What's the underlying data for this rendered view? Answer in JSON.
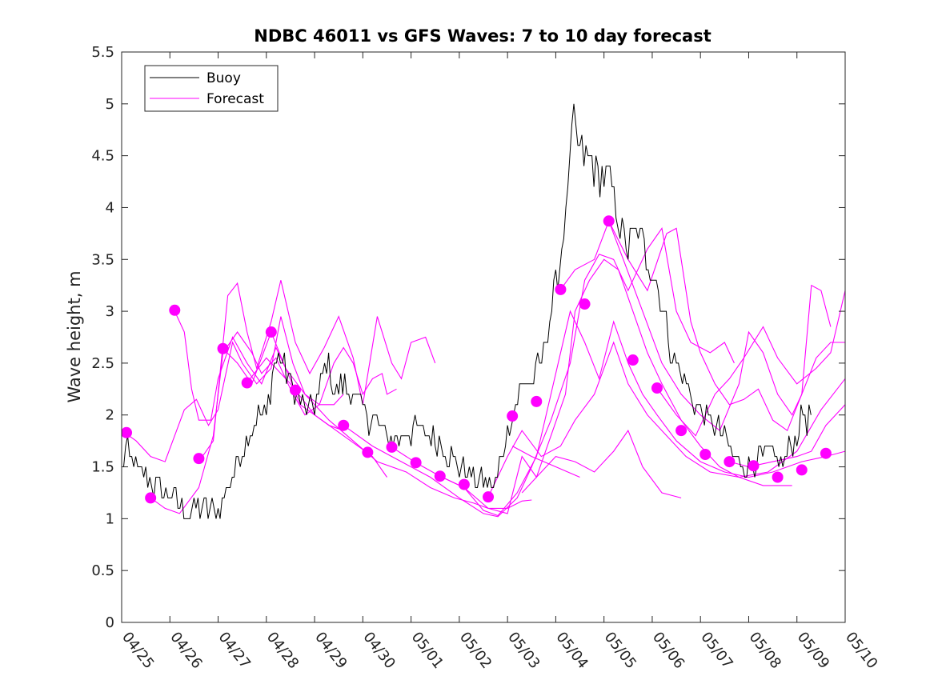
{
  "chart_data": {
    "type": "line",
    "title": "NDBC 46011 vs GFS Waves: 7 to 10 day forecast",
    "xlabel": "",
    "ylabel": "Wave height, m",
    "xlim": [
      "04/25",
      "05/10"
    ],
    "ylim": [
      0,
      5.5
    ],
    "x_ticks": [
      "04/25",
      "04/26",
      "04/27",
      "04/28",
      "04/29",
      "04/30",
      "05/01",
      "05/02",
      "05/03",
      "05/04",
      "05/05",
      "05/06",
      "05/07",
      "05/08",
      "05/09",
      "05/10"
    ],
    "y_ticks": [
      "0",
      "0.5",
      "1",
      "1.5",
      "2",
      "2.5",
      "3",
      "3.5",
      "4",
      "4.5",
      "5",
      "5.5"
    ],
    "grid": false,
    "legend": {
      "position": "top-left",
      "entries": [
        "Buoy",
        "Forecast"
      ]
    },
    "colors": {
      "buoy": "#000000",
      "forecast": "#ff00ff"
    },
    "buoy_anchors": [
      [
        0.0,
        1.5
      ],
      [
        0.1,
        1.65
      ],
      [
        0.3,
        1.5
      ],
      [
        0.5,
        1.4
      ],
      [
        0.7,
        1.3
      ],
      [
        0.9,
        1.25
      ],
      [
        1.1,
        1.2
      ],
      [
        1.2,
        1.1
      ],
      [
        1.4,
        1.05
      ],
      [
        1.6,
        1.1
      ],
      [
        1.8,
        1.08
      ],
      [
        2.0,
        1.1
      ],
      [
        2.1,
        1.15
      ],
      [
        2.2,
        1.3
      ],
      [
        2.4,
        1.55
      ],
      [
        2.6,
        1.8
      ],
      [
        2.8,
        2.0
      ],
      [
        3.0,
        2.0
      ],
      [
        3.15,
        2.5
      ],
      [
        3.3,
        2.6
      ],
      [
        3.5,
        2.3
      ],
      [
        3.7,
        2.1
      ],
      [
        3.9,
        2.05
      ],
      [
        4.1,
        2.2
      ],
      [
        4.25,
        2.55
      ],
      [
        4.4,
        2.2
      ],
      [
        4.6,
        2.3
      ],
      [
        4.8,
        2.2
      ],
      [
        5.0,
        2.05
      ],
      [
        5.2,
        1.95
      ],
      [
        5.4,
        1.85
      ],
      [
        5.6,
        1.75
      ],
      [
        5.8,
        1.8
      ],
      [
        6.0,
        1.85
      ],
      [
        6.2,
        1.85
      ],
      [
        6.4,
        1.8
      ],
      [
        6.6,
        1.75
      ],
      [
        6.8,
        1.6
      ],
      [
        7.0,
        1.5
      ],
      [
        7.2,
        1.45
      ],
      [
        7.4,
        1.35
      ],
      [
        7.6,
        1.3
      ],
      [
        7.75,
        1.35
      ],
      [
        7.9,
        1.65
      ],
      [
        8.1,
        2.0
      ],
      [
        8.3,
        2.3
      ],
      [
        8.5,
        2.3
      ],
      [
        8.7,
        2.5
      ],
      [
        8.9,
        3.0
      ],
      [
        9.1,
        3.5
      ],
      [
        9.2,
        4.0
      ],
      [
        9.35,
        4.8
      ],
      [
        9.5,
        4.5
      ],
      [
        9.7,
        4.5
      ],
      [
        9.9,
        4.3
      ],
      [
        10.1,
        4.3
      ],
      [
        10.3,
        3.9
      ],
      [
        10.5,
        3.6
      ],
      [
        10.7,
        3.8
      ],
      [
        10.9,
        3.5
      ],
      [
        11.1,
        3.3
      ],
      [
        11.3,
        2.8
      ],
      [
        11.5,
        2.5
      ],
      [
        11.7,
        2.3
      ],
      [
        11.9,
        2.1
      ],
      [
        12.1,
        2.0
      ],
      [
        12.3,
        1.9
      ],
      [
        12.5,
        1.75
      ],
      [
        12.7,
        1.6
      ],
      [
        12.9,
        1.5
      ],
      [
        13.1,
        1.55
      ],
      [
        13.3,
        1.6
      ],
      [
        13.5,
        1.6
      ],
      [
        13.7,
        1.55
      ],
      [
        13.9,
        1.7
      ],
      [
        14.0,
        1.8
      ],
      [
        14.1,
        2.0
      ],
      [
        14.2,
        1.95
      ],
      [
        14.3,
        2.0
      ]
    ],
    "forecast_dots": [
      [
        0.1,
        1.83
      ],
      [
        0.6,
        1.2
      ],
      [
        1.1,
        3.01
      ],
      [
        1.6,
        1.58
      ],
      [
        2.1,
        2.64
      ],
      [
        2.6,
        2.31
      ],
      [
        3.1,
        2.8
      ],
      [
        3.6,
        2.24
      ],
      [
        4.6,
        1.9
      ],
      [
        5.1,
        1.64
      ],
      [
        5.6,
        1.69
      ],
      [
        6.1,
        1.54
      ],
      [
        6.6,
        1.41
      ],
      [
        7.1,
        1.33
      ],
      [
        7.6,
        1.21
      ],
      [
        8.1,
        1.99
      ],
      [
        8.6,
        2.13
      ],
      [
        9.1,
        3.21
      ],
      [
        9.6,
        3.07
      ],
      [
        10.1,
        3.87
      ],
      [
        10.6,
        2.53
      ],
      [
        11.1,
        2.26
      ],
      [
        11.6,
        1.85
      ],
      [
        12.1,
        1.62
      ],
      [
        12.6,
        1.55
      ],
      [
        13.1,
        1.51
      ],
      [
        13.6,
        1.4
      ],
      [
        14.1,
        1.47
      ],
      [
        14.6,
        1.63
      ]
    ],
    "forecast_series": [
      [
        [
          0.0,
          1.85
        ],
        [
          0.3,
          1.75
        ],
        [
          0.6,
          1.6
        ],
        [
          0.9,
          1.55
        ],
        [
          1.3,
          2.05
        ],
        [
          1.55,
          2.15
        ],
        [
          1.8,
          1.9
        ],
        [
          2.0,
          2.05
        ],
        [
          2.3,
          2.7
        ],
        [
          2.5,
          2.5
        ],
        [
          2.8,
          2.3
        ],
        [
          3.1,
          2.45
        ],
        [
          3.3,
          2.95
        ],
        [
          3.55,
          2.5
        ],
        [
          3.8,
          2.2
        ],
        [
          4.1,
          2.1
        ],
        [
          4.4,
          2.1
        ],
        [
          4.6,
          2.2
        ]
      ],
      [
        [
          1.1,
          3.0
        ],
        [
          1.3,
          2.8
        ],
        [
          1.45,
          2.25
        ],
        [
          1.6,
          1.95
        ],
        [
          1.85,
          1.95
        ],
        [
          2.0,
          2.35
        ],
        [
          2.3,
          2.75
        ],
        [
          2.6,
          2.5
        ],
        [
          2.9,
          2.3
        ],
        [
          3.2,
          2.65
        ],
        [
          3.45,
          2.4
        ],
        [
          3.7,
          2.1
        ],
        [
          4.0,
          2.0
        ],
        [
          4.3,
          1.9
        ],
        [
          4.6,
          1.85
        ]
      ],
      [
        [
          0.6,
          1.2
        ],
        [
          0.9,
          1.1
        ],
        [
          1.2,
          1.05
        ],
        [
          1.6,
          1.3
        ],
        [
          1.9,
          1.8
        ],
        [
          2.1,
          2.6
        ],
        [
          2.4,
          2.8
        ],
        [
          2.7,
          2.6
        ],
        [
          2.9,
          2.4
        ],
        [
          3.2,
          2.55
        ],
        [
          3.5,
          2.25
        ],
        [
          3.8,
          2.0
        ],
        [
          4.1,
          2.1
        ],
        [
          4.4,
          2.5
        ],
        [
          4.6,
          2.65
        ],
        [
          4.8,
          2.5
        ],
        [
          5.0,
          2.2
        ],
        [
          5.2,
          2.35
        ],
        [
          5.4,
          2.4
        ],
        [
          5.5,
          2.2
        ],
        [
          5.7,
          2.25
        ]
      ],
      [
        [
          1.6,
          1.55
        ],
        [
          1.9,
          1.75
        ],
        [
          2.2,
          3.15
        ],
        [
          2.4,
          3.27
        ],
        [
          2.6,
          2.8
        ],
        [
          2.8,
          2.45
        ],
        [
          3.1,
          2.9
        ],
        [
          3.3,
          3.3
        ],
        [
          3.6,
          2.7
        ],
        [
          3.9,
          2.4
        ],
        [
          4.2,
          2.65
        ],
        [
          4.5,
          2.95
        ],
        [
          4.8,
          2.55
        ],
        [
          5.0,
          2.1
        ],
        [
          5.3,
          2.95
        ],
        [
          5.6,
          2.5
        ],
        [
          5.8,
          2.35
        ],
        [
          6.0,
          2.7
        ],
        [
          6.3,
          2.75
        ],
        [
          6.5,
          2.5
        ]
      ],
      [
        [
          2.1,
          2.64
        ],
        [
          2.4,
          2.5
        ],
        [
          2.7,
          2.3
        ],
        [
          3.1,
          2.8
        ],
        [
          3.4,
          2.45
        ],
        [
          3.8,
          2.2
        ],
        [
          4.3,
          1.95
        ],
        [
          4.8,
          1.75
        ],
        [
          5.3,
          1.55
        ],
        [
          5.9,
          1.45
        ],
        [
          6.4,
          1.3
        ],
        [
          6.9,
          1.2
        ],
        [
          7.3,
          1.15
        ],
        [
          7.6,
          1.1
        ],
        [
          8.0,
          1.1
        ],
        [
          8.3,
          1.17
        ],
        [
          8.5,
          1.18
        ]
      ],
      [
        [
          2.6,
          2.31
        ],
        [
          3.0,
          2.55
        ],
        [
          3.5,
          2.3
        ],
        [
          4.0,
          2.0
        ],
        [
          4.6,
          1.8
        ],
        [
          5.2,
          1.6
        ],
        [
          5.5,
          1.4
        ]
      ],
      [
        [
          4.6,
          1.9
        ],
        [
          5.2,
          1.7
        ],
        [
          5.8,
          1.55
        ],
        [
          6.4,
          1.4
        ],
        [
          7.0,
          1.2
        ],
        [
          7.5,
          1.05
        ],
        [
          7.8,
          1.02
        ],
        [
          8.2,
          1.2
        ],
        [
          8.5,
          1.5
        ],
        [
          8.9,
          1.95
        ],
        [
          9.3,
          2.5
        ],
        [
          9.6,
          3.3
        ],
        [
          9.9,
          3.55
        ],
        [
          10.2,
          3.5
        ],
        [
          10.5,
          3.2
        ],
        [
          10.9,
          3.6
        ],
        [
          11.2,
          3.8
        ],
        [
          11.5,
          3.0
        ],
        [
          11.8,
          2.7
        ],
        [
          12.2,
          2.6
        ],
        [
          12.5,
          2.7
        ],
        [
          12.7,
          2.5
        ]
      ],
      [
        [
          5.6,
          1.69
        ],
        [
          6.1,
          1.54
        ],
        [
          6.6,
          1.41
        ],
        [
          7.1,
          1.3
        ],
        [
          7.6,
          1.1
        ],
        [
          8.0,
          1.05
        ],
        [
          8.3,
          1.6
        ],
        [
          8.6,
          1.4
        ],
        [
          8.9,
          1.8
        ],
        [
          9.2,
          2.2
        ],
        [
          9.4,
          3.0
        ],
        [
          9.7,
          3.3
        ],
        [
          10.0,
          3.5
        ],
        [
          10.3,
          3.4
        ],
        [
          10.6,
          3.0
        ],
        [
          10.9,
          2.6
        ],
        [
          11.2,
          2.3
        ],
        [
          11.6,
          1.95
        ],
        [
          12.0,
          1.7
        ],
        [
          12.4,
          1.5
        ],
        [
          12.8,
          1.4
        ],
        [
          13.3,
          1.32
        ],
        [
          13.9,
          1.32
        ]
      ],
      [
        [
          6.6,
          1.41
        ],
        [
          7.1,
          1.3
        ],
        [
          7.5,
          1.08
        ],
        [
          7.8,
          1.03
        ],
        [
          8.2,
          1.25
        ],
        [
          8.6,
          1.6
        ],
        [
          9.0,
          2.4
        ],
        [
          9.3,
          3.0
        ],
        [
          9.6,
          2.7
        ],
        [
          9.9,
          2.35
        ],
        [
          10.2,
          2.9
        ],
        [
          10.5,
          2.5
        ],
        [
          10.8,
          2.2
        ],
        [
          11.1,
          2.0
        ],
        [
          11.5,
          1.75
        ],
        [
          12.0,
          1.55
        ],
        [
          12.5,
          1.45
        ],
        [
          13.0,
          1.4
        ],
        [
          13.5,
          1.45
        ],
        [
          14.1,
          1.55
        ],
        [
          14.6,
          1.6
        ],
        [
          15.0,
          1.65
        ]
      ],
      [
        [
          7.6,
          1.21
        ],
        [
          8.0,
          1.6
        ],
        [
          8.3,
          1.85
        ],
        [
          8.7,
          1.6
        ],
        [
          9.1,
          1.7
        ],
        [
          9.4,
          1.95
        ],
        [
          9.8,
          2.2
        ],
        [
          10.2,
          2.7
        ],
        [
          10.5,
          2.3
        ],
        [
          10.9,
          2.0
        ],
        [
          11.3,
          1.8
        ],
        [
          11.7,
          1.6
        ],
        [
          12.2,
          1.45
        ],
        [
          12.8,
          1.4
        ],
        [
          13.4,
          1.45
        ],
        [
          14.0,
          1.65
        ],
        [
          14.5,
          2.05
        ],
        [
          15.0,
          2.35
        ]
      ],
      [
        [
          8.1,
          1.7
        ],
        [
          8.5,
          1.6
        ],
        [
          9.0,
          1.5
        ],
        [
          9.5,
          1.4
        ]
      ],
      [
        [
          8.3,
          1.25
        ],
        [
          8.6,
          1.4
        ],
        [
          9.0,
          1.6
        ],
        [
          9.4,
          1.55
        ],
        [
          9.8,
          1.45
        ],
        [
          10.2,
          1.65
        ],
        [
          10.5,
          1.85
        ],
        [
          10.8,
          1.5
        ],
        [
          11.2,
          1.25
        ],
        [
          11.6,
          1.2
        ]
      ],
      [
        [
          9.1,
          3.21
        ],
        [
          9.4,
          3.4
        ],
        [
          9.8,
          3.5
        ],
        [
          10.1,
          3.87
        ],
        [
          10.4,
          3.5
        ],
        [
          10.8,
          3.0
        ],
        [
          11.2,
          2.5
        ],
        [
          11.6,
          2.2
        ],
        [
          12.0,
          2.0
        ],
        [
          12.4,
          1.85
        ],
        [
          12.8,
          2.3
        ],
        [
          13.0,
          2.8
        ],
        [
          13.3,
          2.6
        ],
        [
          13.6,
          2.2
        ],
        [
          13.9,
          2.0
        ],
        [
          14.1,
          2.2
        ],
        [
          14.4,
          2.55
        ],
        [
          14.7,
          2.7
        ],
        [
          15.0,
          2.7
        ]
      ],
      [
        [
          10.1,
          3.87
        ],
        [
          10.5,
          3.5
        ],
        [
          10.9,
          3.2
        ],
        [
          11.3,
          3.75
        ],
        [
          11.5,
          3.8
        ],
        [
          11.8,
          2.9
        ],
        [
          12.0,
          2.6
        ],
        [
          12.3,
          2.3
        ],
        [
          12.6,
          2.1
        ],
        [
          12.9,
          2.15
        ],
        [
          13.2,
          2.25
        ],
        [
          13.5,
          1.95
        ],
        [
          13.8,
          1.85
        ],
        [
          14.1,
          2.2
        ],
        [
          14.3,
          3.25
        ],
        [
          14.5,
          3.2
        ],
        [
          14.7,
          2.85
        ]
      ],
      [
        [
          11.1,
          2.26
        ],
        [
          11.5,
          2.0
        ],
        [
          11.9,
          1.8
        ],
        [
          12.3,
          2.2
        ],
        [
          12.6,
          2.35
        ],
        [
          12.9,
          2.55
        ],
        [
          13.3,
          2.85
        ],
        [
          13.6,
          2.55
        ],
        [
          14.0,
          2.3
        ],
        [
          14.4,
          2.45
        ],
        [
          14.7,
          2.6
        ],
        [
          15.0,
          3.2
        ]
      ],
      [
        [
          12.6,
          1.55
        ],
        [
          13.0,
          1.5
        ],
        [
          13.5,
          1.55
        ],
        [
          14.0,
          1.6
        ],
        [
          14.3,
          1.65
        ],
        [
          14.6,
          1.9
        ],
        [
          15.0,
          2.1
        ]
      ]
    ]
  }
}
